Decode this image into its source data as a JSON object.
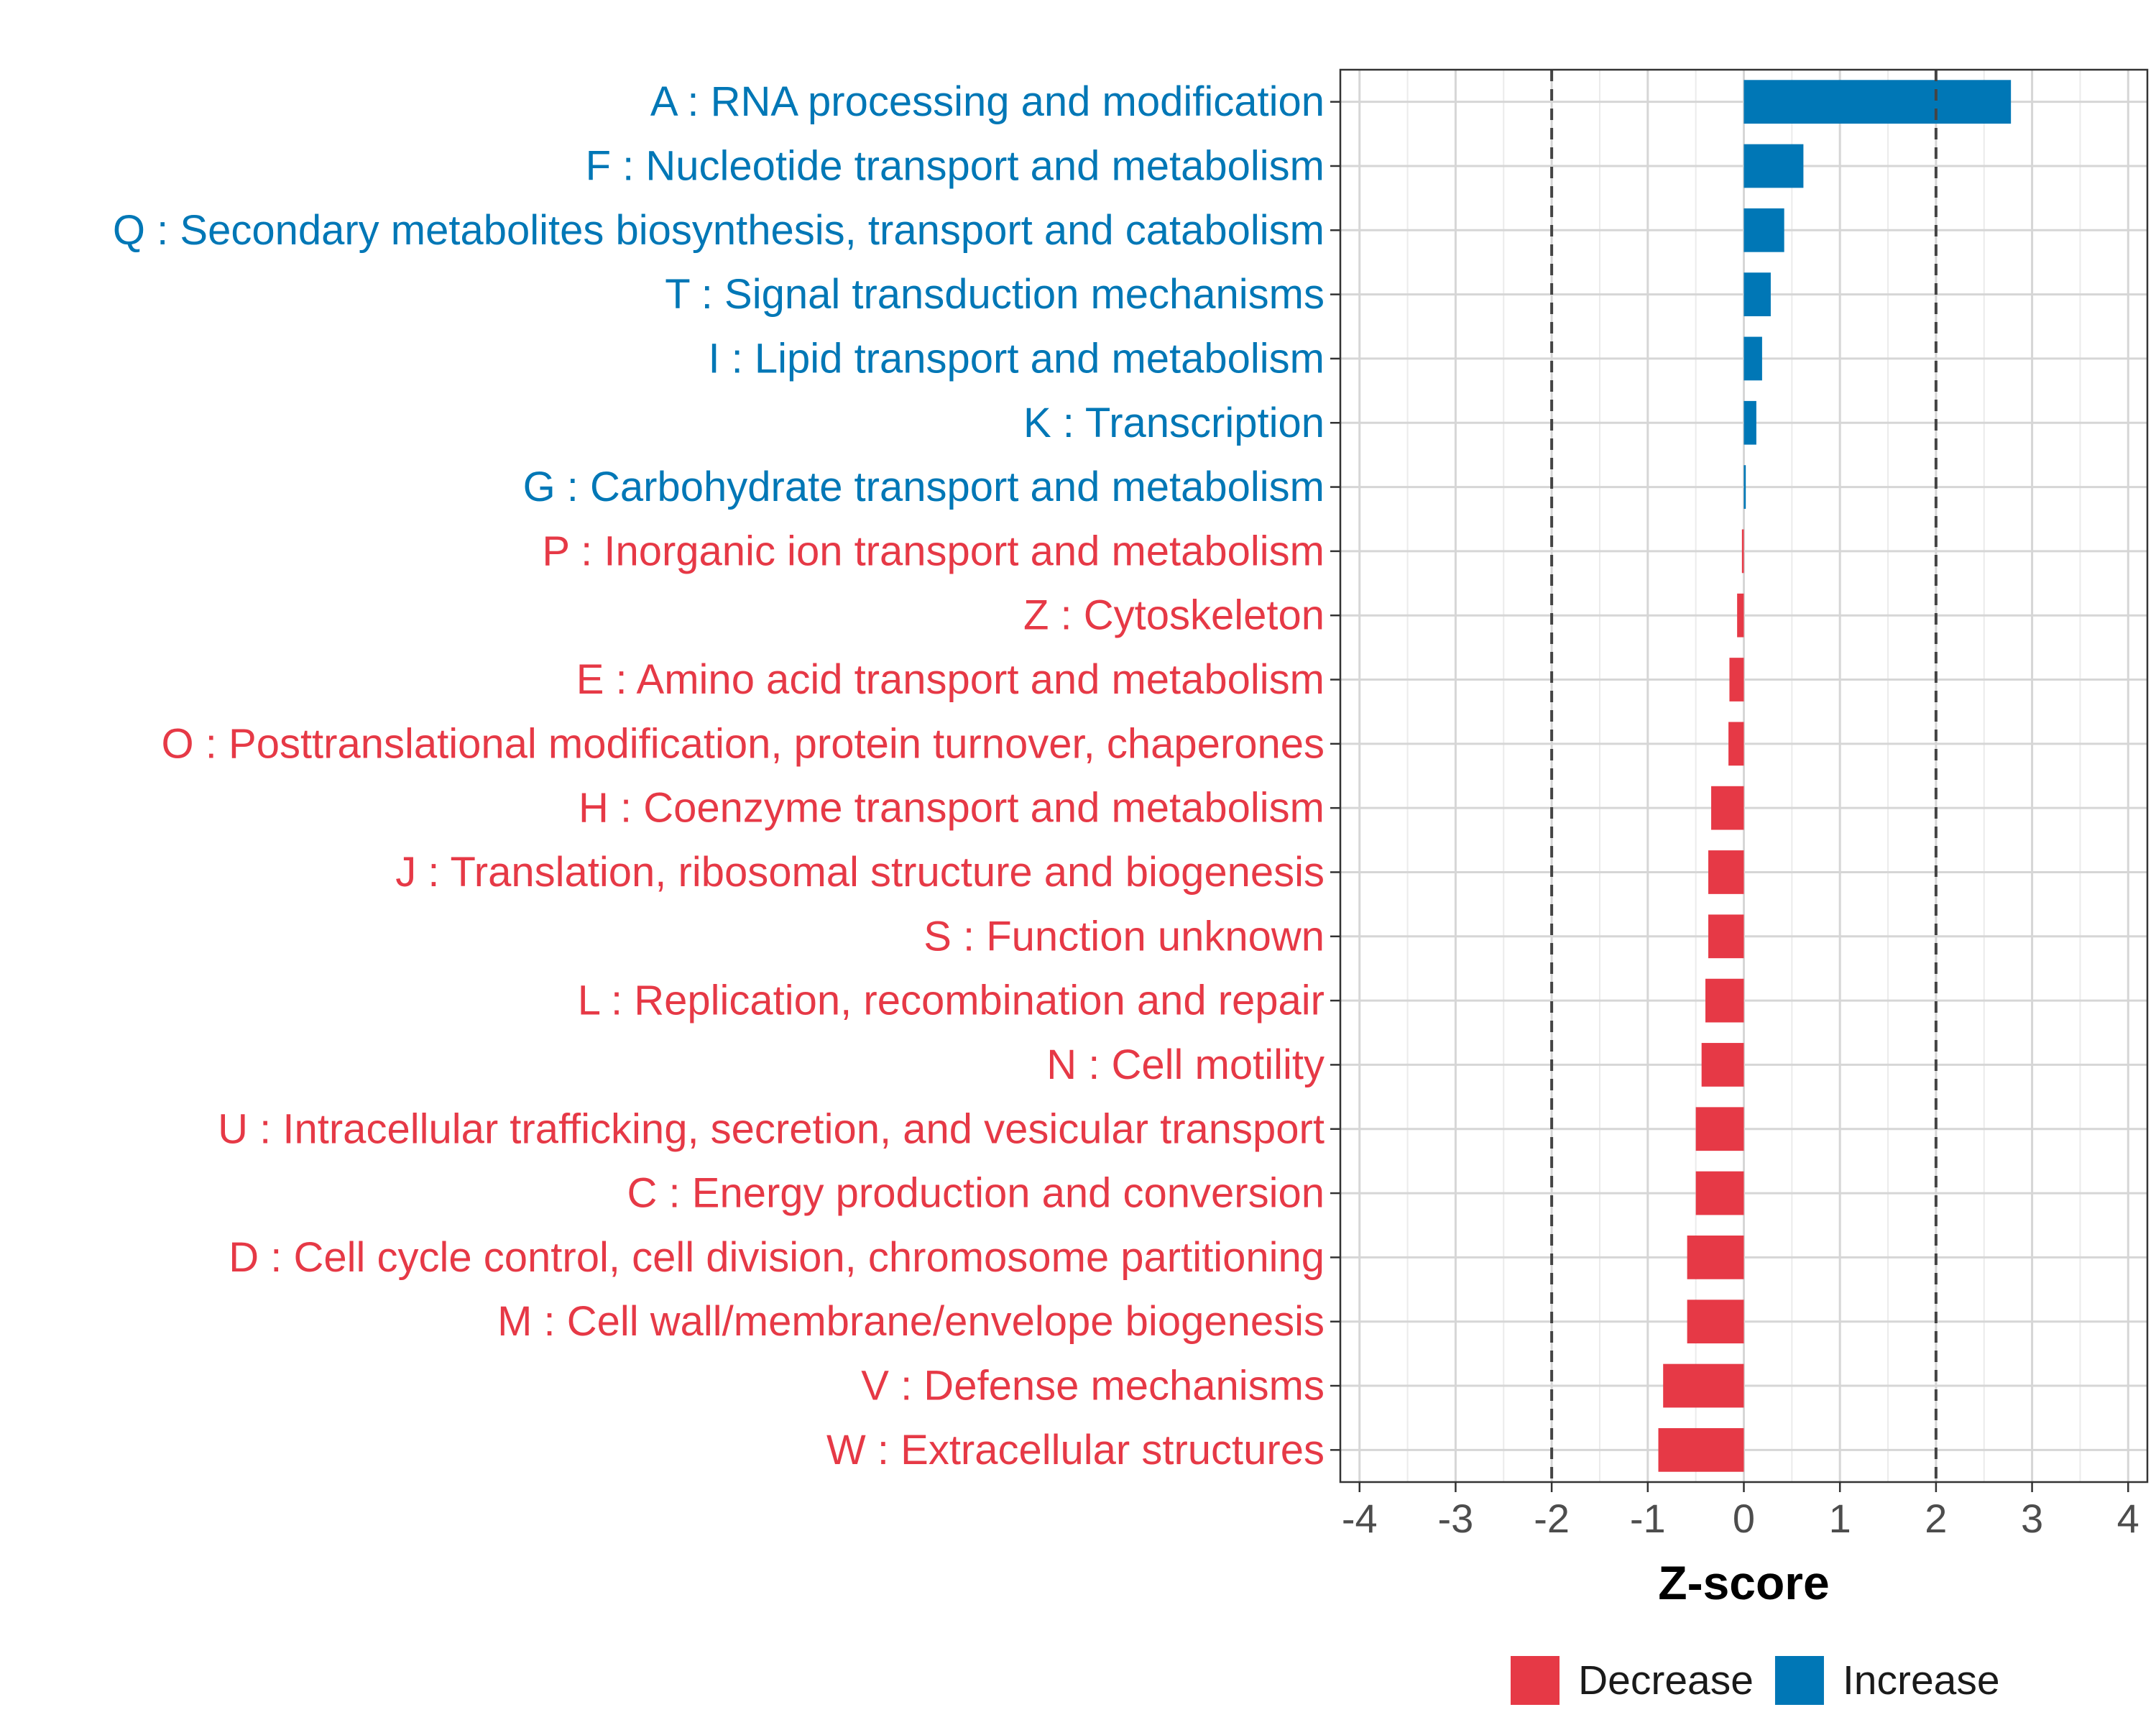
{
  "chart_data": {
    "type": "bar",
    "orientation": "horizontal",
    "title": "",
    "xlabel": "Z-score",
    "ylabel": "",
    "xlim": [
      -4.2,
      4.2
    ],
    "xticks": [
      -4,
      -3,
      -2,
      -1,
      0,
      1,
      2,
      3,
      4
    ],
    "grid": true,
    "reference_lines": [
      -2,
      2
    ],
    "legend": {
      "position": "bottom",
      "entries": [
        {
          "label": "Decrease",
          "color": "#E63946"
        },
        {
          "label": "Increase",
          "color": "#0077B6"
        }
      ]
    },
    "categories": [
      "A : RNA processing and modification",
      "F : Nucleotide transport and metabolism",
      "Q : Secondary metabolites biosynthesis, transport and catabolism",
      "T : Signal transduction mechanisms",
      "I : Lipid transport and metabolism",
      "K : Transcription",
      "G : Carbohydrate transport and metabolism",
      "P : Inorganic ion transport and metabolism",
      "Z : Cytoskeleton",
      "E : Amino acid transport and metabolism",
      "O : Posttranslational modification, protein turnover, chaperones",
      "H : Coenzyme transport and metabolism",
      "J : Translation, ribosomal structure and biogenesis",
      "S : Function unknown",
      "L : Replication, recombination and repair",
      "N : Cell motility",
      "U : Intracellular trafficking, secretion, and vesicular transport",
      "C : Energy production and conversion",
      "D : Cell cycle control, cell division, chromosome partitioning",
      "M : Cell wall/membrane/envelope biogenesis",
      "V : Defense mechanisms",
      "W : Extracellular structures"
    ],
    "values": [
      2.78,
      0.62,
      0.42,
      0.28,
      0.19,
      0.13,
      0.02,
      -0.02,
      -0.07,
      -0.15,
      -0.16,
      -0.34,
      -0.37,
      -0.37,
      -0.4,
      -0.44,
      -0.5,
      -0.5,
      -0.59,
      -0.59,
      -0.84,
      -0.89
    ],
    "groups": [
      "Increase",
      "Increase",
      "Increase",
      "Increase",
      "Increase",
      "Increase",
      "Increase",
      "Decrease",
      "Decrease",
      "Decrease",
      "Decrease",
      "Decrease",
      "Decrease",
      "Decrease",
      "Decrease",
      "Decrease",
      "Decrease",
      "Decrease",
      "Decrease",
      "Decrease",
      "Decrease",
      "Decrease"
    ]
  }
}
